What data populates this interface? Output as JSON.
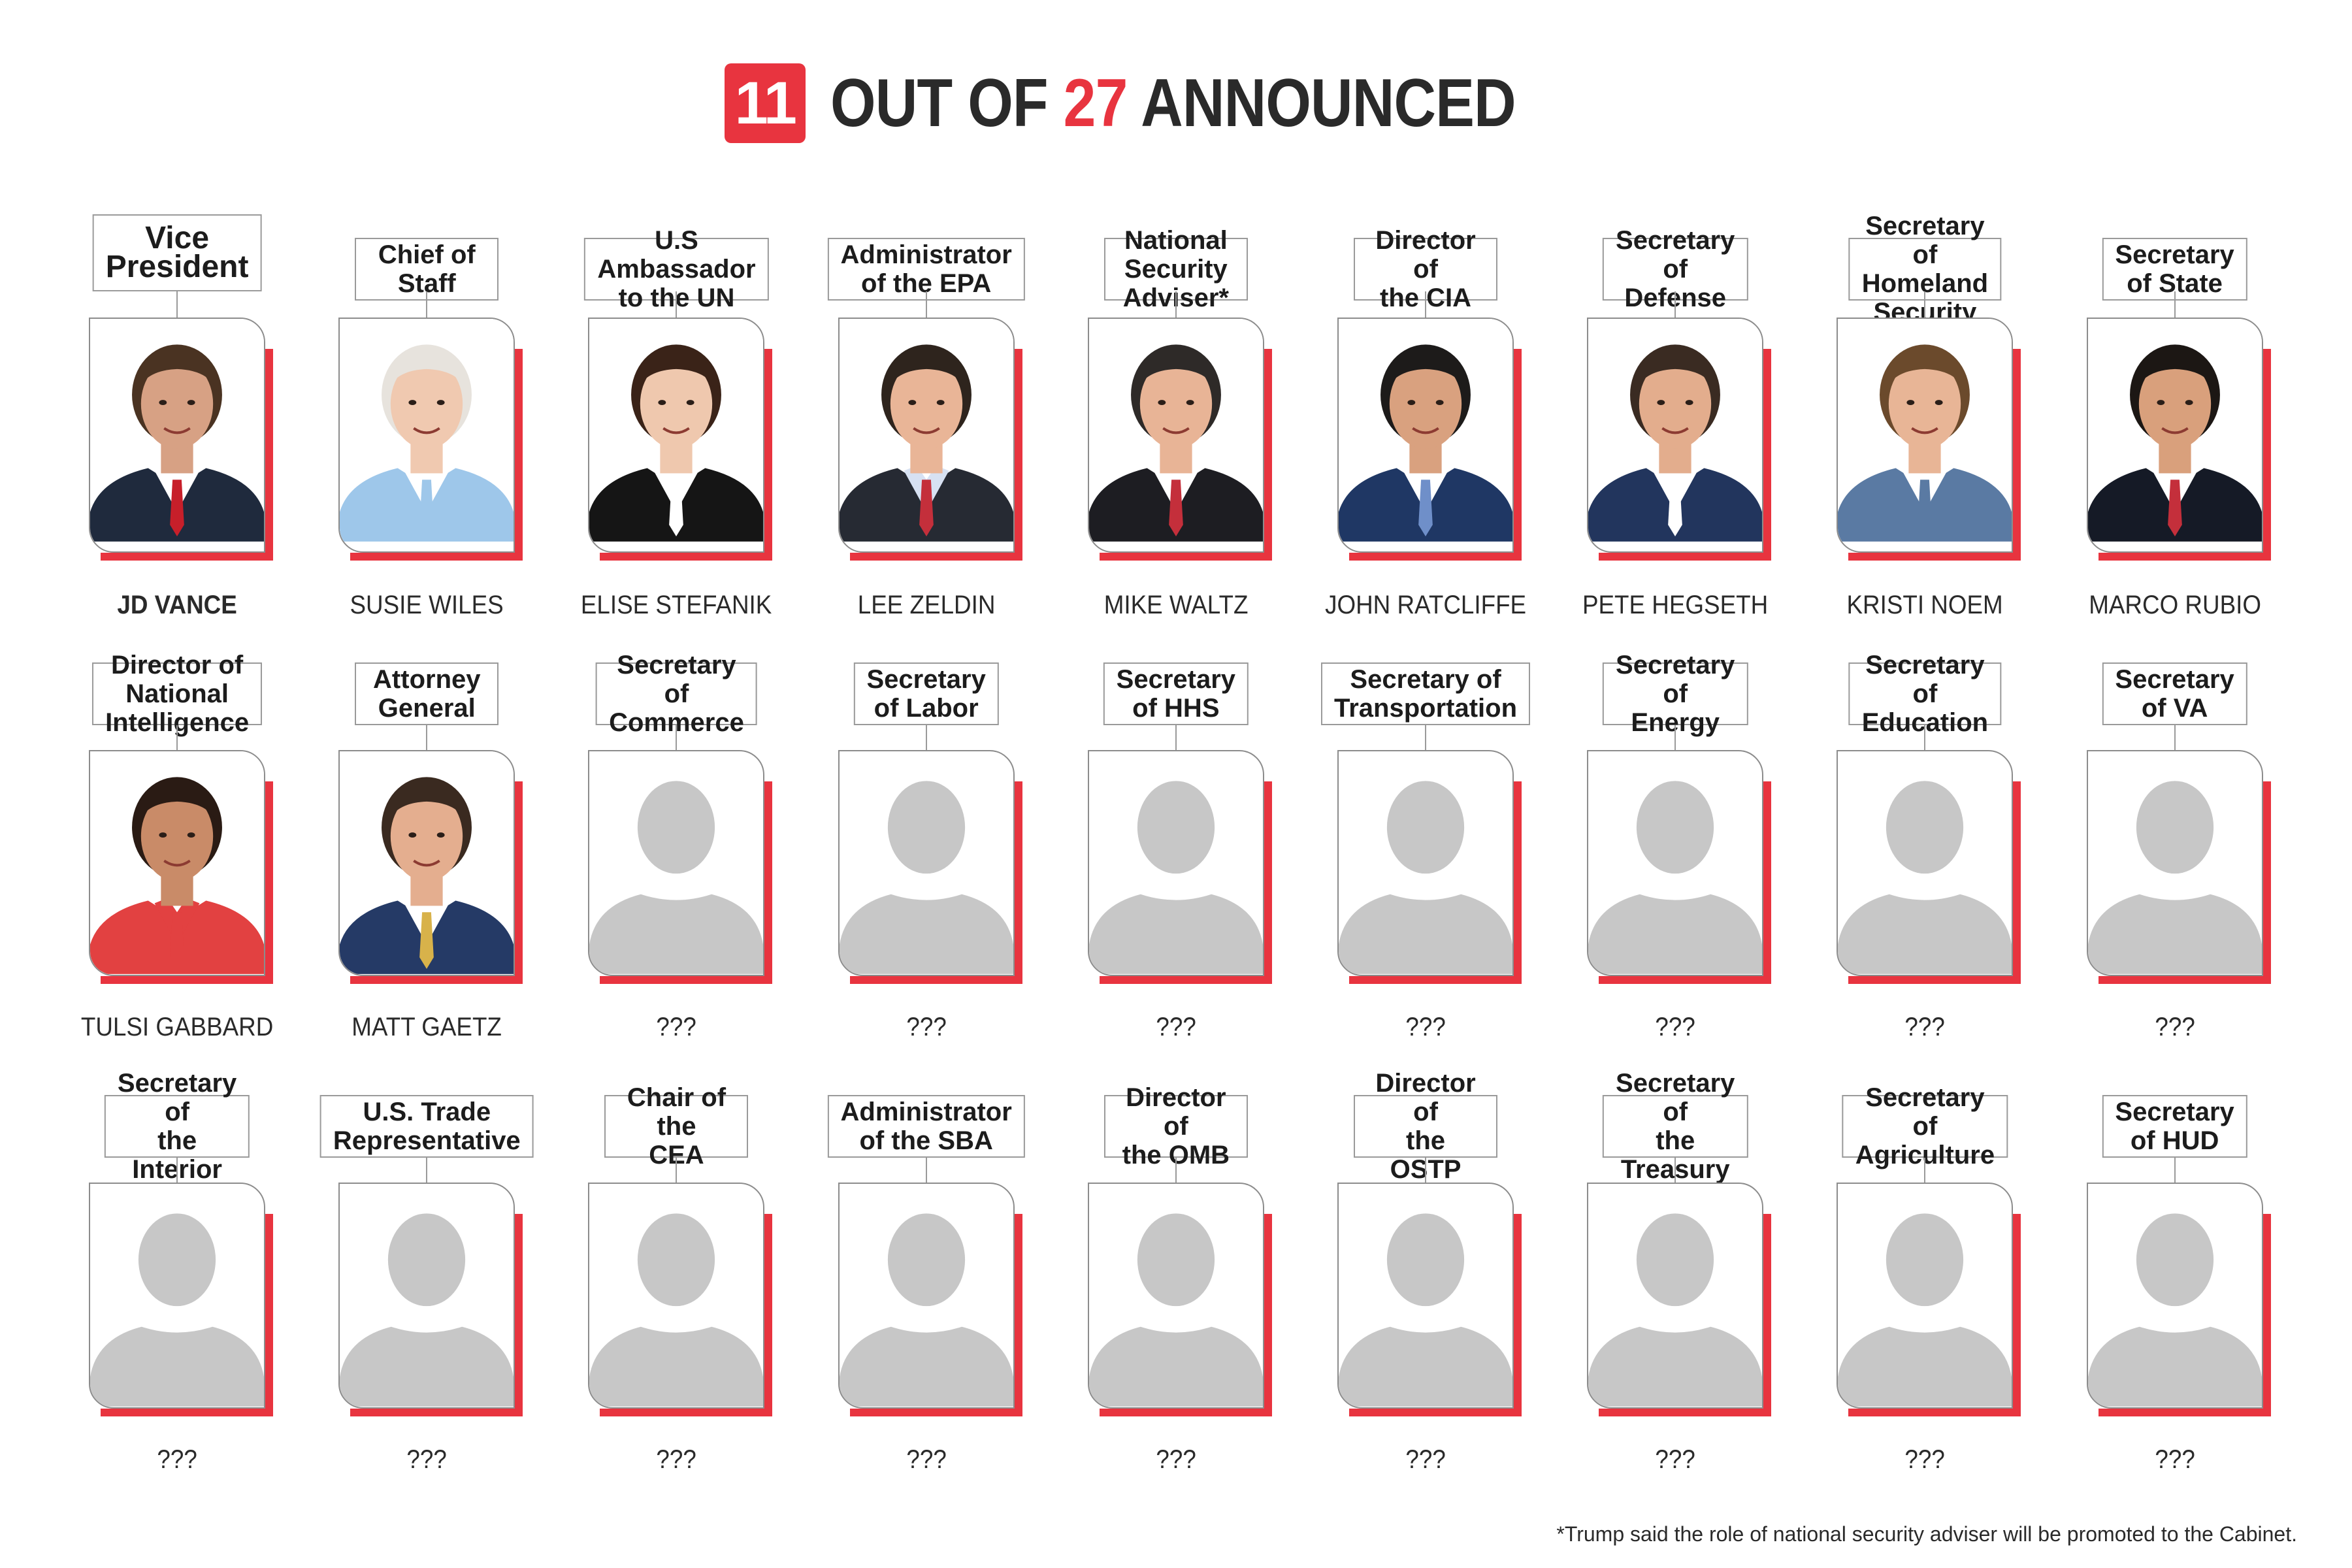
{
  "header": {
    "count": "11",
    "headline_prefix": "OUT OF ",
    "headline_total": "27",
    "headline_suffix": " ANNOUNCED"
  },
  "colors": {
    "accent": "#e8343f",
    "frame": "#8c8c8c",
    "silhouette": "#c7c7c7"
  },
  "positions": [
    {
      "title": "Vice President",
      "name": "JD VANCE",
      "photo": "person-photo",
      "skin": "#d7a184",
      "hair": "#4a3322",
      "shirt": "#ffffff",
      "suit": "#1f2a3d",
      "tie": "#c71f2a"
    },
    {
      "title": "Chief of Staff",
      "name": "SUSIE WILES",
      "photo": "person-photo",
      "skin": "#f0c9b0",
      "hair": "#e7e3dd",
      "shirt": "#ffffff",
      "suit": "#9ec7ea",
      "tie": "#9ec7ea"
    },
    {
      "title": "U.S Ambassador\nto the UN",
      "name": "ELISE STEFANIK",
      "photo": "person-photo",
      "skin": "#efc8ae",
      "hair": "#3a2318",
      "shirt": "#ffffff",
      "suit": "#151515",
      "tie": "#ffffff"
    },
    {
      "title": "Administrator\nof the EPA",
      "name": "LEE ZELDIN",
      "photo": "person-photo",
      "skin": "#e9b597",
      "hair": "#2e241d",
      "shirt": "#d7e1f2",
      "suit": "#262a33",
      "tie": "#c42f3b"
    },
    {
      "title": "National Security\nAdviser*",
      "name": "MIKE WALTZ",
      "photo": "person-photo",
      "skin": "#e8b496",
      "hair": "#2e2a28",
      "shirt": "#ffffff",
      "suit": "#1d1d22",
      "tie": "#c42f3b"
    },
    {
      "title": "Director of\nthe CIA",
      "name": "JOHN RATCLIFFE",
      "photo": "person-photo",
      "skin": "#d9a17f",
      "hair": "#1d1b1a",
      "shirt": "#ffffff",
      "suit": "#1f3764",
      "tie": "#6f8fc9"
    },
    {
      "title": "Secretary of\nDefense",
      "name": "PETE HEGSETH",
      "photo": "person-photo",
      "skin": "#e3ad8d",
      "hair": "#3a2b22",
      "shirt": "#ffffff",
      "suit": "#22355d",
      "tie": "#ffffff"
    },
    {
      "title": "Secretary of\nHomeland Security",
      "name": "KRISTI NOEM",
      "photo": "person-photo",
      "skin": "#e8b596",
      "hair": "#6b4a2c",
      "shirt": "#ffffff",
      "suit": "#5a7aa3",
      "tie": "#5a7aa3"
    },
    {
      "title": "Secretary\nof State",
      "name": "MARCO RUBIO",
      "photo": "person-photo",
      "skin": "#d9a07c",
      "hair": "#1c1714",
      "shirt": "#ffffff",
      "suit": "#151a26",
      "tie": "#c42f3b"
    },
    {
      "title": "Director of National\nIntelligence",
      "name": "TULSI GABBARD",
      "photo": "person-photo",
      "skin": "#c98b68",
      "hair": "#2a1b14",
      "shirt": "#e24141",
      "suit": "#e24141",
      "tie": "#e24141"
    },
    {
      "title": "Attorney\nGeneral",
      "name": "MATT GAETZ",
      "photo": "person-photo",
      "skin": "#e4ae8f",
      "hair": "#3a2a20",
      "shirt": "#ffffff",
      "suit": "#253a66",
      "tie": "#d8b24a"
    },
    {
      "title": "Secretary of\nCommerce",
      "name": "???",
      "photo": "placeholder"
    },
    {
      "title": "Secretary\nof Labor",
      "name": "???",
      "photo": "placeholder"
    },
    {
      "title": "Secretary\nof HHS",
      "name": "???",
      "photo": "placeholder"
    },
    {
      "title": "Secretary of\nTransportation",
      "name": "???",
      "photo": "placeholder"
    },
    {
      "title": "Secretary\nof Energy",
      "name": "???",
      "photo": "placeholder"
    },
    {
      "title": "Secretary of\nEducation",
      "name": "???",
      "photo": "placeholder"
    },
    {
      "title": "Secretary\nof VA",
      "name": "???",
      "photo": "placeholder"
    },
    {
      "title": "Secretary of\nthe Interior",
      "name": "???",
      "photo": "placeholder"
    },
    {
      "title": "U.S. Trade\nRepresentative",
      "name": "???",
      "photo": "placeholder"
    },
    {
      "title": "Chair of the\nCEA",
      "name": "???",
      "photo": "placeholder"
    },
    {
      "title": "Administrator\nof the SBA",
      "name": "???",
      "photo": "placeholder"
    },
    {
      "title": "Director of\nthe OMB",
      "name": "???",
      "photo": "placeholder"
    },
    {
      "title": "Director of\nthe OSTP",
      "name": "???",
      "photo": "placeholder"
    },
    {
      "title": "Secretary of\nthe Treasury",
      "name": "???",
      "photo": "placeholder"
    },
    {
      "title": "Secretary of\nAgriculture",
      "name": "???",
      "photo": "placeholder"
    },
    {
      "title": "Secretary\nof HUD",
      "name": "???",
      "photo": "placeholder"
    }
  ],
  "footnote": "*Trump said the role of national security adviser will be promoted to the Cabinet."
}
